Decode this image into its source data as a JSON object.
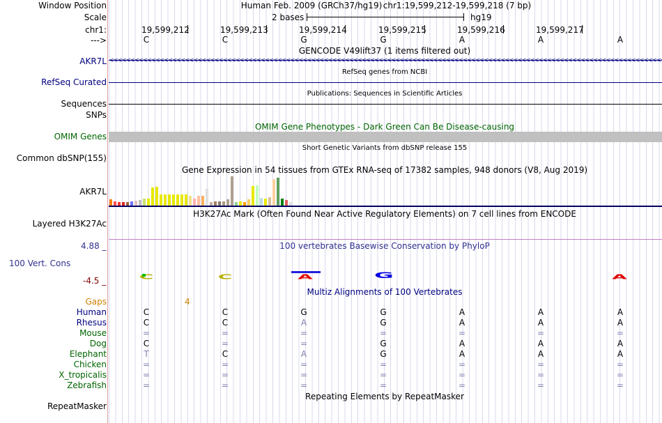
{
  "header": {
    "window_position_label": "Window Position",
    "assembly_text": "Human Feb. 2009 (GRCh37/hg19)",
    "position_text": "chr1:19,599,212-19,599,218 (7 bp)",
    "scale_label": "Scale",
    "scale_bases": "2 bases",
    "scale_assembly": "hg19",
    "chrom_label": "chr1:",
    "strand_label": "--->",
    "coords": [
      "19,599,212",
      "19,599,213",
      "19,599,214",
      "19,599,215",
      "19,599,216",
      "19,599,217"
    ],
    "bases": [
      "C",
      "C",
      "G",
      "G",
      "A",
      "A",
      "A"
    ]
  },
  "tracks": {
    "gencode": {
      "title": "GENCODE V49lift37 (1 items filtered out)",
      "gene_label": "AKR7L",
      "strand_arrows": "<<<<<<<<<<<<<<<<<<<<<<<<<<<<<<<<<<<<<<<<<<<<<<<<<<<<<<<<<<<<<<<<<<<<<<<<<<<<<<<<<<<<<<<<<<<<<<<<<<<<<<<<<<<<<<<<<<<<<<<<<<<<<<<<<<<<<<<<<<<<<<<<<<<<<<<<<<<<<<<<<"
    },
    "refseq": {
      "title": "RefSeq genes from NCBI",
      "label": "RefSeq Curated"
    },
    "publications": {
      "title": "Publications: Sequences in Scientific Articles",
      "label": "Sequences"
    },
    "snps": {
      "label": "SNPs"
    },
    "omim": {
      "title": "OMIM Gene Phenotypes - Dark Green Can Be Disease-causing",
      "label": "OMIM Genes"
    },
    "dbsnp": {
      "title": "Short Genetic Variants from dbSNP release 155",
      "label": "Common dbSNP(155)"
    },
    "gtex": {
      "title": "Gene Expression in 54 tissues from GTEx RNA-seq of 17382 samples, 948 donors (V8, Aug 2019)",
      "label": "AKR7L"
    },
    "h3k27ac": {
      "title": "H3K27Ac Mark (Often Found Near Active Regulatory Elements) on 7 cell lines from ENCODE",
      "label": "Layered H3K27Ac"
    },
    "phylop": {
      "title": "100 vertebrates Basewise Conservation by PhyloP",
      "label": "100 Vert. Cons",
      "max": "4.88 _",
      "min": "-4.5 _"
    },
    "multiz": {
      "title": "Multiz Alignments of 100 Vertebrates",
      "gaps_label": "Gaps",
      "gaps_value": "4",
      "species": [
        {
          "name": "Human",
          "bases": [
            "C",
            "C",
            "G",
            "G",
            "A",
            "A",
            "A"
          ]
        },
        {
          "name": "Rhesus",
          "bases": [
            "C",
            "C",
            "A",
            "G",
            "A",
            "A",
            "A"
          ]
        },
        {
          "name": "Mouse",
          "bases": [
            "=",
            "=",
            "=",
            "=",
            "=",
            "=",
            "="
          ]
        },
        {
          "name": "Dog",
          "bases": [
            "C",
            "=",
            "=",
            "G",
            "A",
            "A",
            "A"
          ]
        },
        {
          "name": "Elephant",
          "bases": [
            "T",
            "C",
            "A",
            "G",
            "A",
            "A",
            "A"
          ]
        },
        {
          "name": "Chicken",
          "bases": [
            "=",
            "=",
            "=",
            "=",
            "=",
            "=",
            "="
          ]
        },
        {
          "name": "X_tropicalis",
          "bases": [
            "=",
            "=",
            "=",
            "=",
            "=",
            "=",
            "="
          ]
        },
        {
          "name": "Zebrafish",
          "bases": [
            "=",
            "=",
            "=",
            "=",
            "=",
            "=",
            "="
          ]
        }
      ]
    },
    "repeatmasker": {
      "title": "Repeating Elements by RepeatMasker",
      "label": "RepeatMasker"
    }
  },
  "colors": {
    "navy": "#000080",
    "green": "#006400",
    "purple": "#7070b0",
    "maroon": "#800000",
    "gaps": "#d08000",
    "omim_bar": "#c0c0c0",
    "gtex_baseline": "#000060"
  }
}
